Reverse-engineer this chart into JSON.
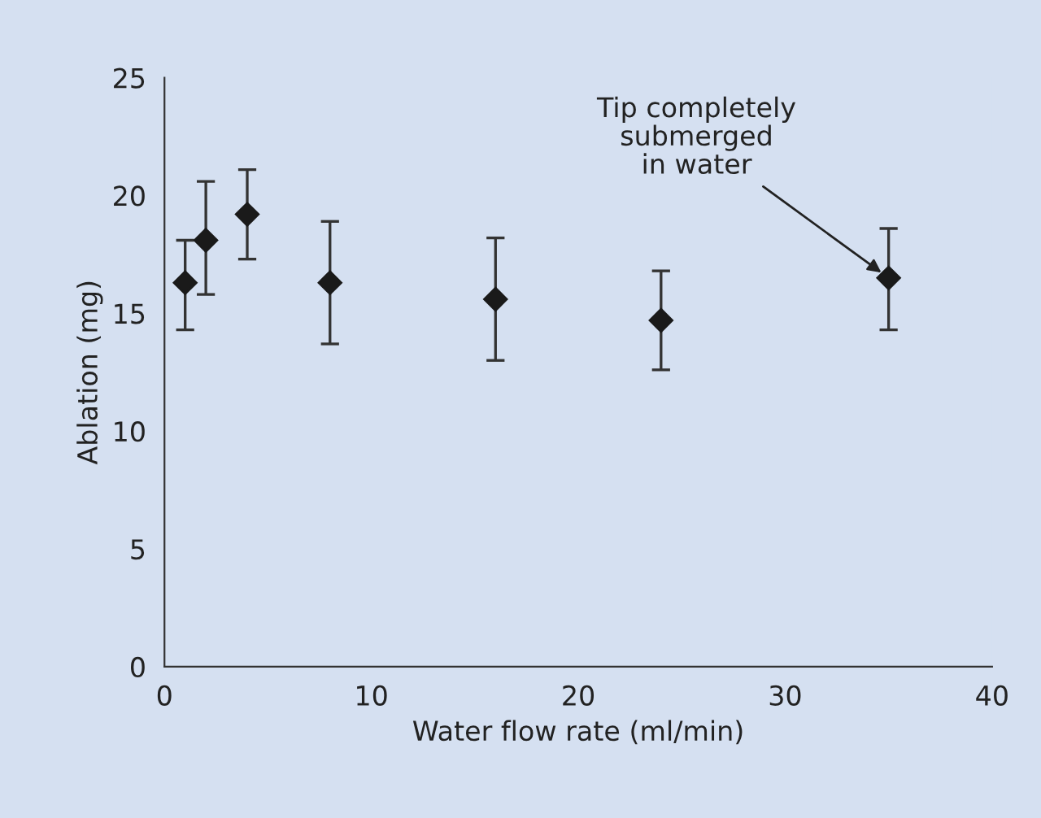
{
  "chart_data": {
    "type": "scatter",
    "xlabel": "Water flow rate (ml/min)",
    "ylabel": "Ablation (mg)",
    "x": [
      1,
      2,
      4,
      8,
      16,
      24,
      35
    ],
    "series": [
      {
        "color": "#1a1a1a",
        "values": [
          16.3,
          18.1,
          19.2,
          16.3,
          15.6,
          14.7,
          16.5
        ],
        "errors": [
          [
            14.3,
            18.1
          ],
          [
            15.8,
            20.6
          ],
          [
            17.3,
            21.1
          ],
          [
            13.7,
            18.9
          ],
          [
            13.0,
            18.2
          ],
          [
            12.6,
            16.8
          ],
          [
            14.3,
            18.6
          ]
        ]
      }
    ],
    "marker": "diamond",
    "xlim": [
      0,
      40
    ],
    "xticks": [
      0,
      10,
      20,
      30,
      40
    ],
    "ylim": [
      0,
      25
    ],
    "yticks": [
      0,
      5,
      10,
      15,
      20,
      25
    ],
    "grid": false,
    "legend": false,
    "annotations": [
      {
        "text": "Tip completely\nsubmerged\nin water",
        "x": 35,
        "y": 16.5
      }
    ]
  }
}
